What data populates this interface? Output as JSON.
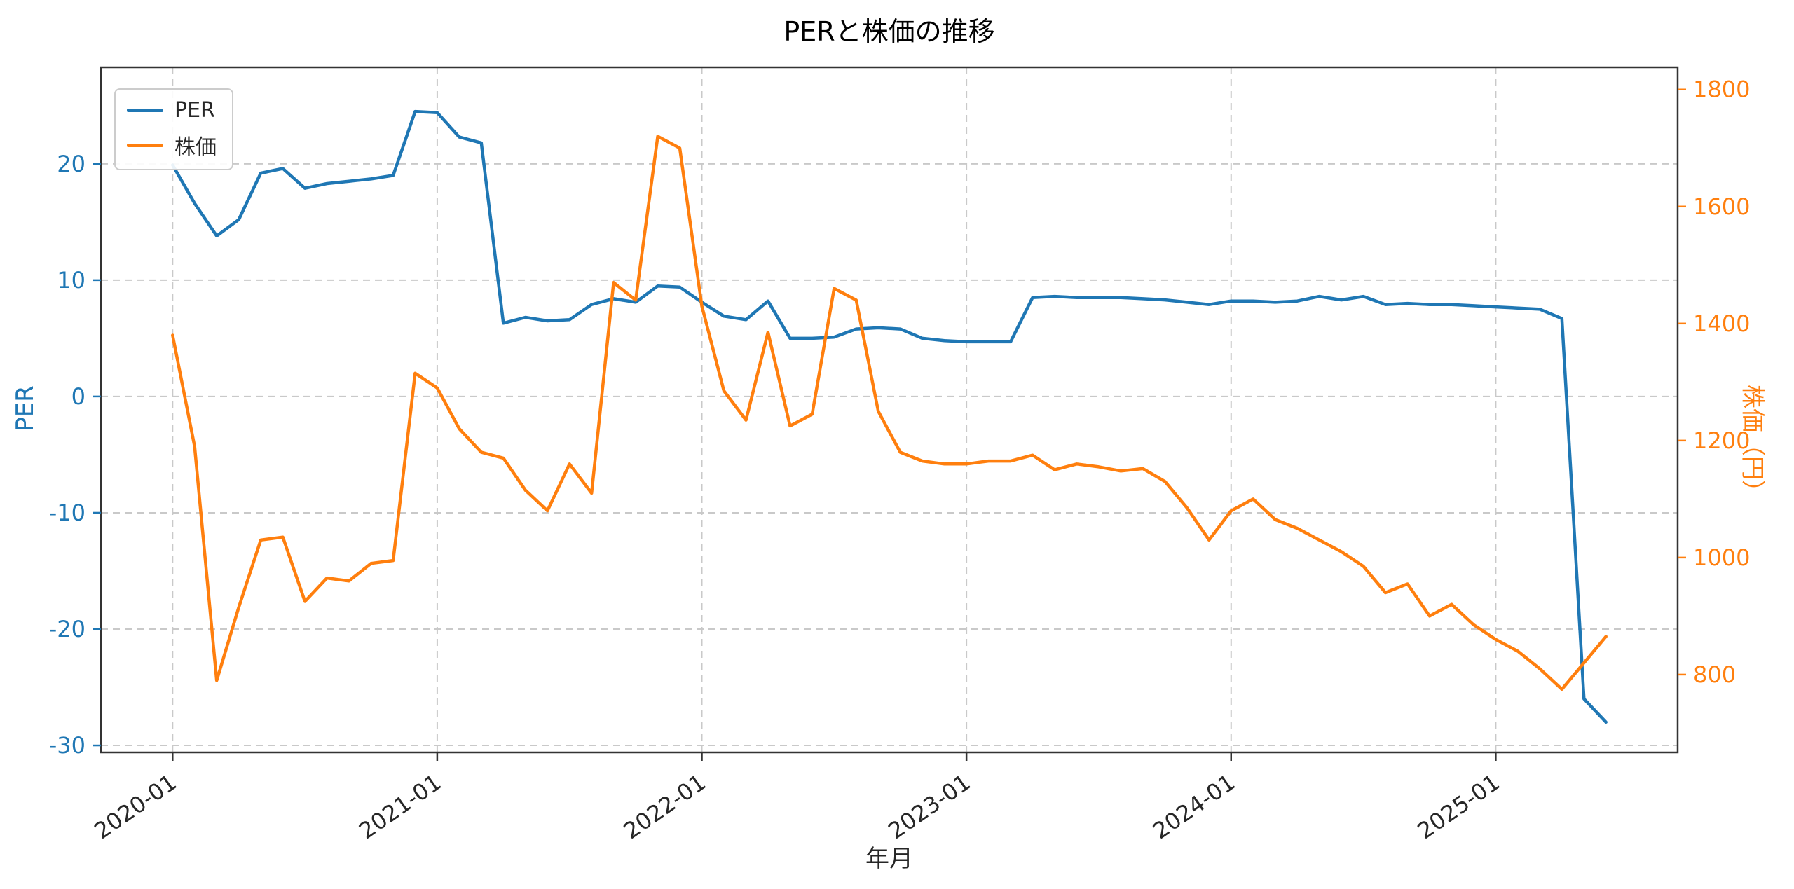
{
  "chart": {
    "title": "PERと株価の推移",
    "xlabel": "年月",
    "ylabel_left": "PER",
    "ylabel_right": "株価（円）",
    "legend": [
      {
        "label": "PER",
        "color": "#1f77b4"
      },
      {
        "label": "株価",
        "color": "#ff7f0e"
      }
    ]
  },
  "chart_data": {
    "type": "line",
    "title": "PERと株価の推移",
    "xlabel": "年月",
    "x": [
      "2020-01",
      "2020-02",
      "2020-03",
      "2020-04",
      "2020-05",
      "2020-06",
      "2020-07",
      "2020-08",
      "2020-09",
      "2020-10",
      "2020-11",
      "2020-12",
      "2021-01",
      "2021-02",
      "2021-03",
      "2021-04",
      "2021-05",
      "2021-06",
      "2021-07",
      "2021-08",
      "2021-09",
      "2021-10",
      "2021-11",
      "2021-12",
      "2022-01",
      "2022-02",
      "2022-03",
      "2022-04",
      "2022-05",
      "2022-06",
      "2022-07",
      "2022-08",
      "2022-09",
      "2022-10",
      "2022-11",
      "2022-12",
      "2023-01",
      "2023-02",
      "2023-03",
      "2023-04",
      "2023-05",
      "2023-06",
      "2023-07",
      "2023-08",
      "2023-09",
      "2023-10",
      "2023-11",
      "2023-12",
      "2024-01",
      "2024-02",
      "2024-03",
      "2024-04",
      "2024-05",
      "2024-06",
      "2024-07",
      "2024-08",
      "2024-09",
      "2024-10",
      "2024-11",
      "2024-12",
      "2025-01",
      "2025-02",
      "2025-03",
      "2025-04",
      "2025-05",
      "2025-06"
    ],
    "series": [
      {
        "name": "PER",
        "key": "per",
        "axis": "left",
        "color": "#1f77b4",
        "values": [
          19.9,
          16.6,
          13.8,
          15.2,
          19.2,
          19.6,
          17.9,
          18.3,
          18.5,
          18.7,
          19.0,
          24.5,
          24.4,
          22.3,
          21.8,
          6.3,
          6.8,
          6.5,
          6.6,
          7.9,
          8.4,
          8.1,
          9.5,
          9.4,
          8.1,
          6.9,
          6.6,
          8.2,
          5.0,
          5.0,
          5.1,
          5.8,
          5.9,
          5.8,
          5.0,
          4.8,
          4.7,
          4.7,
          4.7,
          8.5,
          8.6,
          8.5,
          8.5,
          8.5,
          8.4,
          8.3,
          8.1,
          7.9,
          8.2,
          8.2,
          8.1,
          8.2,
          8.6,
          8.3,
          8.6,
          7.9,
          8.0,
          7.9,
          7.9,
          7.8,
          7.7,
          7.6,
          7.5,
          6.7,
          -26.0,
          -28.0
        ]
      },
      {
        "name": "株価",
        "key": "stock-price",
        "axis": "right",
        "color": "#ff7f0e",
        "values": [
          1380,
          1190,
          790,
          915,
          1030,
          1035,
          925,
          965,
          960,
          990,
          995,
          1315,
          1290,
          1220,
          1180,
          1170,
          1115,
          1080,
          1160,
          1110,
          1470,
          1440,
          1720,
          1700,
          1430,
          1285,
          1235,
          1385,
          1225,
          1245,
          1460,
          1440,
          1250,
          1180,
          1165,
          1160,
          1160,
          1165,
          1165,
          1175,
          1150,
          1160,
          1155,
          1148,
          1152,
          1130,
          1085,
          1030,
          1080,
          1100,
          1065,
          1050,
          1030,
          1010,
          985,
          940,
          955,
          900,
          920,
          885,
          860,
          840,
          810,
          775,
          820,
          865
        ]
      }
    ],
    "x_ticks": [
      {
        "index": 0,
        "label": "2020-01"
      },
      {
        "index": 12,
        "label": "2021-01"
      },
      {
        "index": 24,
        "label": "2022-01"
      },
      {
        "index": 36,
        "label": "2023-01"
      },
      {
        "index": 48,
        "label": "2024-01"
      },
      {
        "index": 60,
        "label": "2025-01"
      }
    ],
    "y_left": {
      "label": "PER",
      "ticks": [
        -30,
        -20,
        -10,
        0,
        10,
        20
      ],
      "lim": [
        -30.6,
        28.3
      ]
    },
    "y_right": {
      "label": "株価（円）",
      "ticks": [
        800,
        1000,
        1200,
        1400,
        1600,
        1800
      ],
      "lim": [
        667,
        1838
      ]
    },
    "grid": {
      "visible": true,
      "style": "dashed",
      "color": "#c9c9c9"
    },
    "legend_position": "upper-left"
  }
}
